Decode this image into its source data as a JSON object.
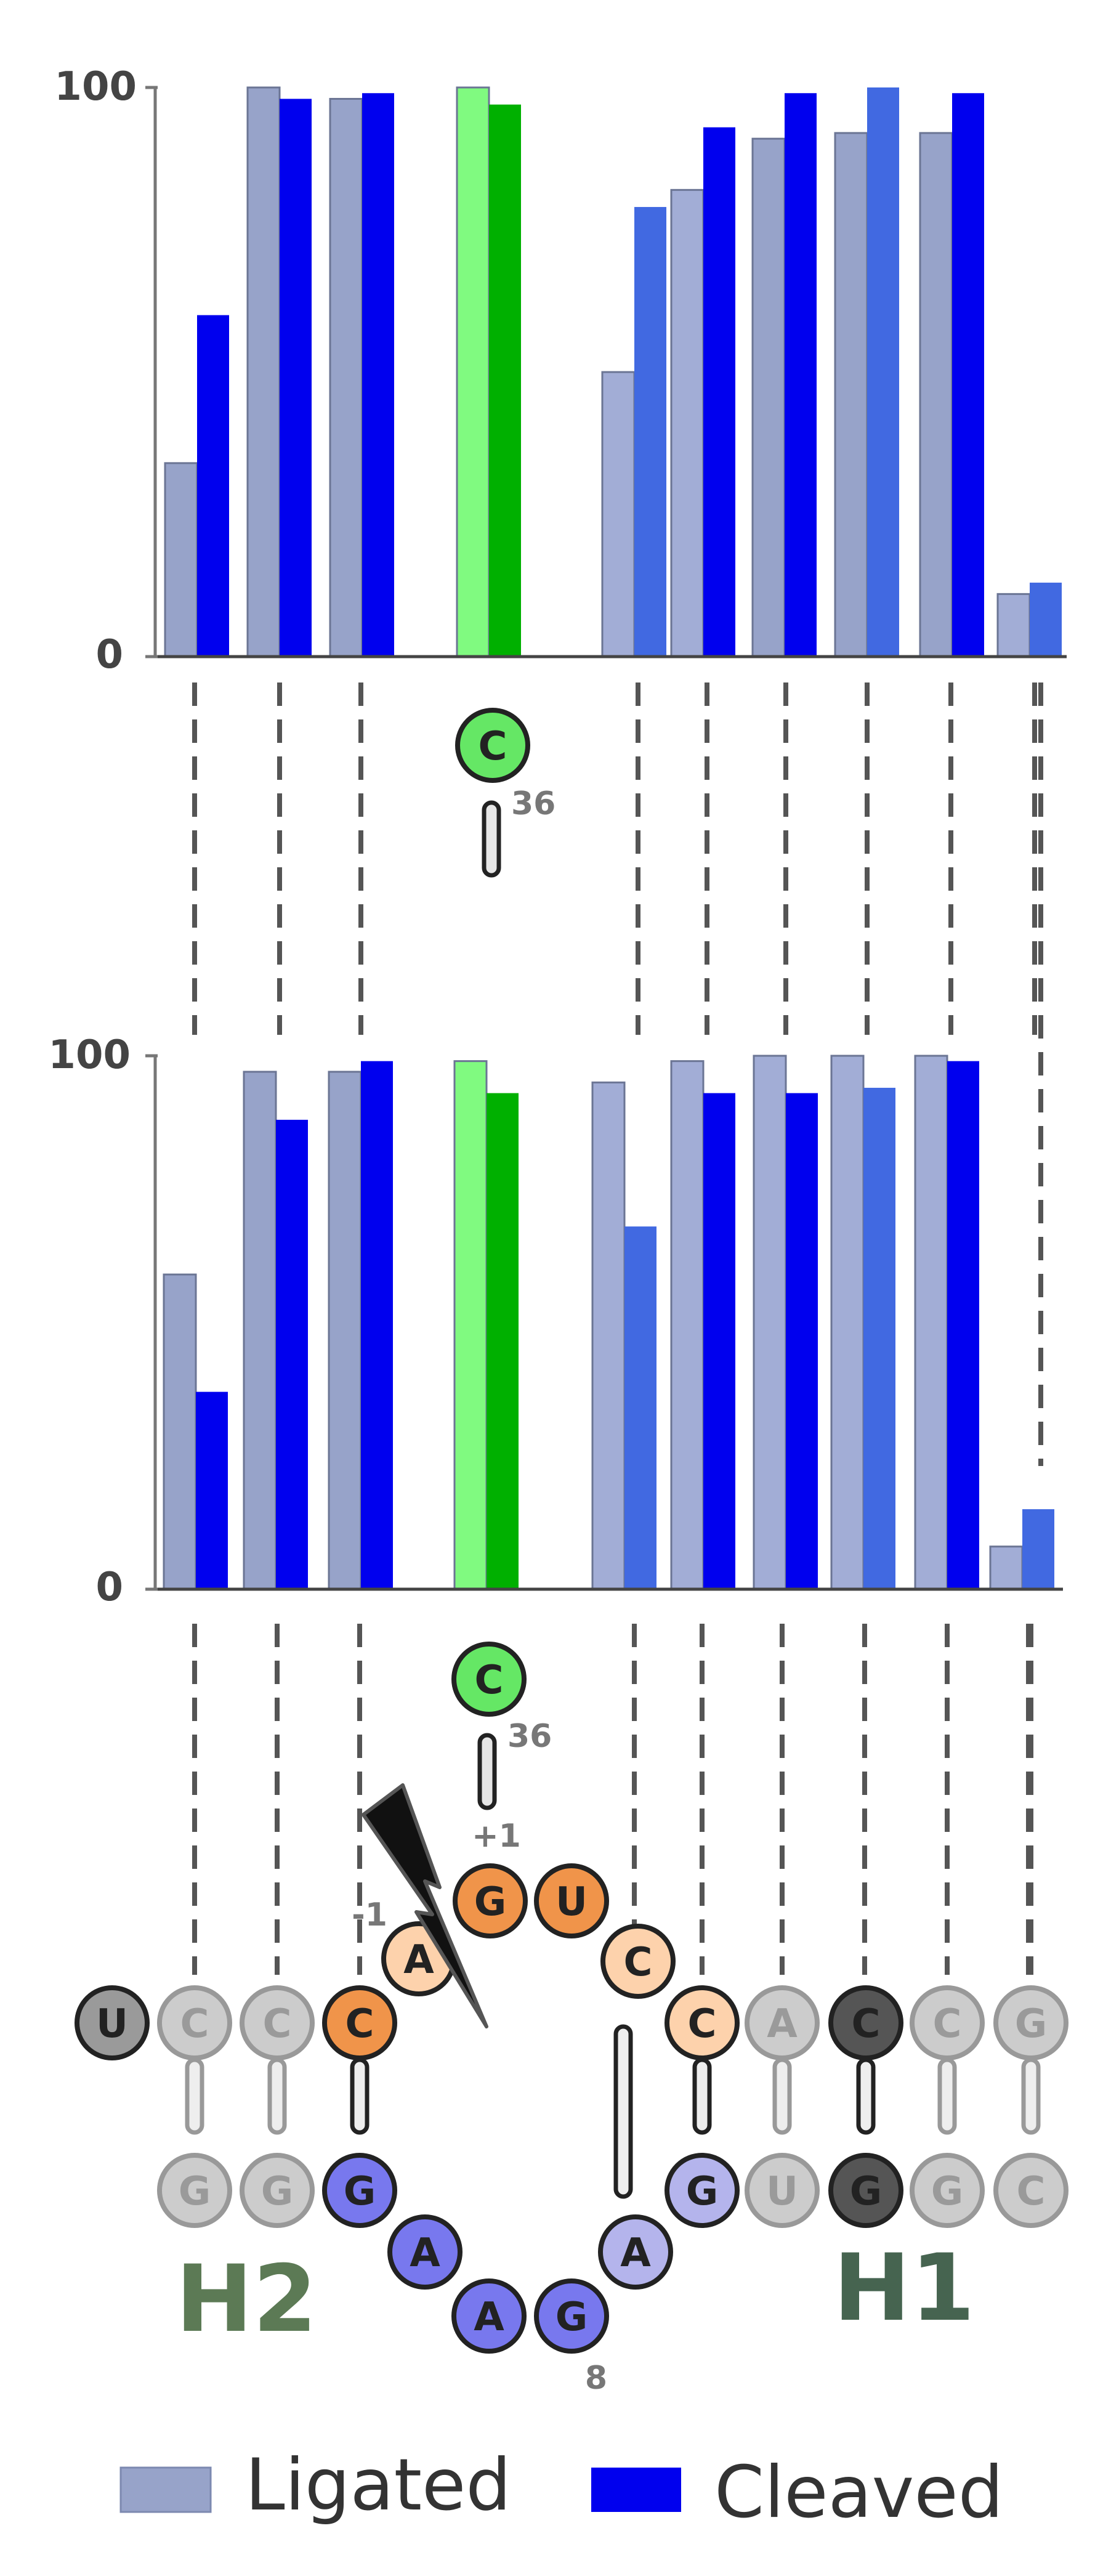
{
  "chart_data": [
    {
      "type": "bar",
      "title": "",
      "xlabel": "",
      "ylabel": "",
      "ylim": [
        0,
        100
      ],
      "y_ticks": [
        "0",
        "100"
      ],
      "series": [
        {
          "name": "Ligated",
          "values": [
            34,
            100,
            98,
            100,
            50,
            82,
            91,
            92,
            92,
            11
          ]
        },
        {
          "name": "Cleaved",
          "values": [
            60,
            98,
            99,
            97,
            79,
            93,
            99,
            100,
            99,
            13
          ]
        }
      ],
      "bar_colors": {
        "ligated": [
          "#97a3c9",
          "#97a3c9",
          "#97a3c9",
          "#80fa80",
          "#a2add6",
          "#a2add6",
          "#97a3c9",
          "#97a3c9",
          "#97a3c9",
          "#a2add6"
        ],
        "cleaved": [
          "#0000ee",
          "#0000ee",
          "#0000ee",
          "#00b000",
          "#4169e1",
          "#0000ee",
          "#0000ee",
          "#4169e1",
          "#0000ee",
          "#4169e1"
        ]
      }
    },
    {
      "type": "bar",
      "title": "",
      "xlabel": "",
      "ylabel": "",
      "ylim": [
        0,
        100
      ],
      "y_ticks": [
        "0",
        "100"
      ],
      "series": [
        {
          "name": "Ligated",
          "values": [
            59,
            97,
            97,
            99,
            95,
            99,
            100,
            100,
            100,
            8
          ]
        },
        {
          "name": "Cleaved",
          "values": [
            37,
            88,
            99,
            93,
            68,
            93,
            93,
            94,
            99,
            15
          ]
        }
      ],
      "bar_colors": {
        "ligated": [
          "#97a3c9",
          "#97a3c9",
          "#97a3c9",
          "#80fa80",
          "#a2add6",
          "#a2add6",
          "#a2add6",
          "#a2add6",
          "#a2add6",
          "#a2add6"
        ],
        "cleaved": [
          "#0000ee",
          "#0000ee",
          "#0000ee",
          "#00b000",
          "#4169e1",
          "#0000ee",
          "#0000ee",
          "#4169e1",
          "#0000ee",
          "#4169e1"
        ]
      }
    }
  ],
  "legend": [
    {
      "label": "Ligated",
      "color": "#97a3c9"
    },
    {
      "label": "Cleaved",
      "color": "#0000ee"
    }
  ],
  "structure": {
    "connector_nucleotide": "C",
    "connector_number": "36",
    "plus_one_label": "+1",
    "minus_one_label": "-1",
    "position_8_label": "8",
    "helix_labels": {
      "h2": "H2",
      "h1": "H1"
    },
    "top_strand": [
      "U",
      "C",
      "C",
      "C"
    ],
    "loop": [
      "A",
      "G",
      "U",
      "C"
    ],
    "right_top_strand": [
      "C",
      "A",
      "C",
      "C",
      "G"
    ],
    "bottom_left_strand": [
      "G",
      "G",
      "G"
    ],
    "bottom_loop": [
      "A",
      "A",
      "G",
      "A"
    ],
    "bottom_right_strand": [
      "G",
      "U",
      "G",
      "G",
      "C"
    ],
    "colors": {
      "gray_fill": "#cccccc",
      "gray_stroke": "#999999",
      "gray_text": "#9a9a9a",
      "dark_fill": "#555555",
      "orange": "#f0944a",
      "light_orange": "#fdd2ac",
      "purple": "#7878ee",
      "light_purple": "#b4b4ec",
      "green": "#65e765",
      "h2_color": "#5c7a55",
      "h1_color": "#466450"
    }
  }
}
